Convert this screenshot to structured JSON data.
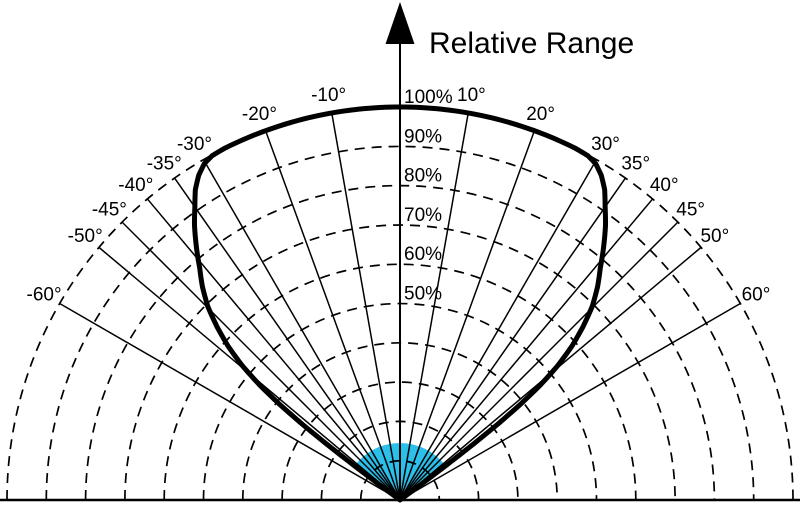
{
  "title": "Relative Range",
  "colors": {
    "ink": "#000000",
    "background": "#ffffff",
    "transducer_fill": "#2bbfe9"
  },
  "chart_data": {
    "type": "line",
    "subtype": "polar-beam-pattern",
    "title": "Relative Range",
    "orientation": "upward semicircle, origin at bottom center",
    "radial_axis": {
      "unit": "%",
      "min": 0,
      "max": 100,
      "grid_rings_pct": [
        10,
        20,
        30,
        40,
        50,
        60,
        70,
        80,
        90,
        100
      ],
      "labeled_rings": [
        "50%",
        "60%",
        "70%",
        "80%",
        "90%",
        "100%"
      ],
      "grid_style": "dashed"
    },
    "angular_axis": {
      "unit": "deg",
      "span_deg": [
        -90,
        90
      ],
      "grid_angles_deg": [
        -60,
        -50,
        -45,
        -40,
        -35,
        -30,
        -20,
        -10,
        0,
        10,
        20,
        30,
        35,
        40,
        45,
        50,
        60
      ],
      "labeled_angles": [
        "-60°",
        "-50°",
        "-45°",
        "-40°",
        "-35°",
        "-30°",
        "-20°",
        "-10°",
        "10°",
        "20°",
        "30°",
        "35°",
        "40°",
        "45°",
        "50°",
        "60°"
      ],
      "grid_style": "solid"
    },
    "series": [
      {
        "name": "relative-range-beam-profile",
        "points_deg_pct": [
          [
            -53.5,
            0
          ],
          [
            -53.4,
            7
          ],
          [
            -53.1,
            15
          ],
          [
            -52.7,
            23.4
          ],
          [
            -52.2,
            31.4
          ],
          [
            -51.5,
            39.4
          ],
          [
            -50.7,
            46
          ],
          [
            -49.6,
            52.6
          ],
          [
            -48.2,
            58.6
          ],
          [
            -46.6,
            64
          ],
          [
            -44.8,
            69.4
          ],
          [
            -42.8,
            74
          ],
          [
            -40.8,
            78
          ],
          [
            -38.8,
            82.7
          ],
          [
            -36.8,
            87.3
          ],
          [
            -35,
            91
          ],
          [
            -33.4,
            94.6
          ],
          [
            -31.8,
            97.2
          ],
          [
            -30.2,
            99
          ],
          [
            -28.6,
            99.8
          ],
          [
            -26.5,
            100
          ],
          [
            -23,
            100
          ],
          [
            -18,
            100
          ],
          [
            -12,
            100
          ],
          [
            -6,
            100
          ],
          [
            0,
            100
          ],
          [
            6,
            100
          ],
          [
            12,
            100
          ],
          [
            18,
            100
          ],
          [
            23,
            100
          ],
          [
            26.5,
            100
          ],
          [
            28.6,
            99.8
          ],
          [
            30.2,
            99
          ],
          [
            31.8,
            97.2
          ],
          [
            33.4,
            94.6
          ],
          [
            35,
            91
          ],
          [
            36.8,
            87.3
          ],
          [
            38.8,
            82.7
          ],
          [
            40.8,
            78
          ],
          [
            42.8,
            74
          ],
          [
            44.8,
            69.4
          ],
          [
            46.6,
            64
          ],
          [
            48.2,
            58.6
          ],
          [
            49.6,
            52.6
          ],
          [
            50.7,
            46
          ],
          [
            51.5,
            39.4
          ],
          [
            52.2,
            31.4
          ],
          [
            52.7,
            23.4
          ],
          [
            53.1,
            15
          ],
          [
            53.4,
            7
          ],
          [
            53.5,
            0
          ]
        ]
      }
    ],
    "transducer_sector": {
      "angle_min_deg": -52.5,
      "angle_max_deg": 52.5,
      "radius_pct": 14.5,
      "fill": "#2bbfe9"
    },
    "annotations": {
      "axis_arrow": "up arrow at top of 0-deg axis",
      "legend": "none"
    }
  }
}
